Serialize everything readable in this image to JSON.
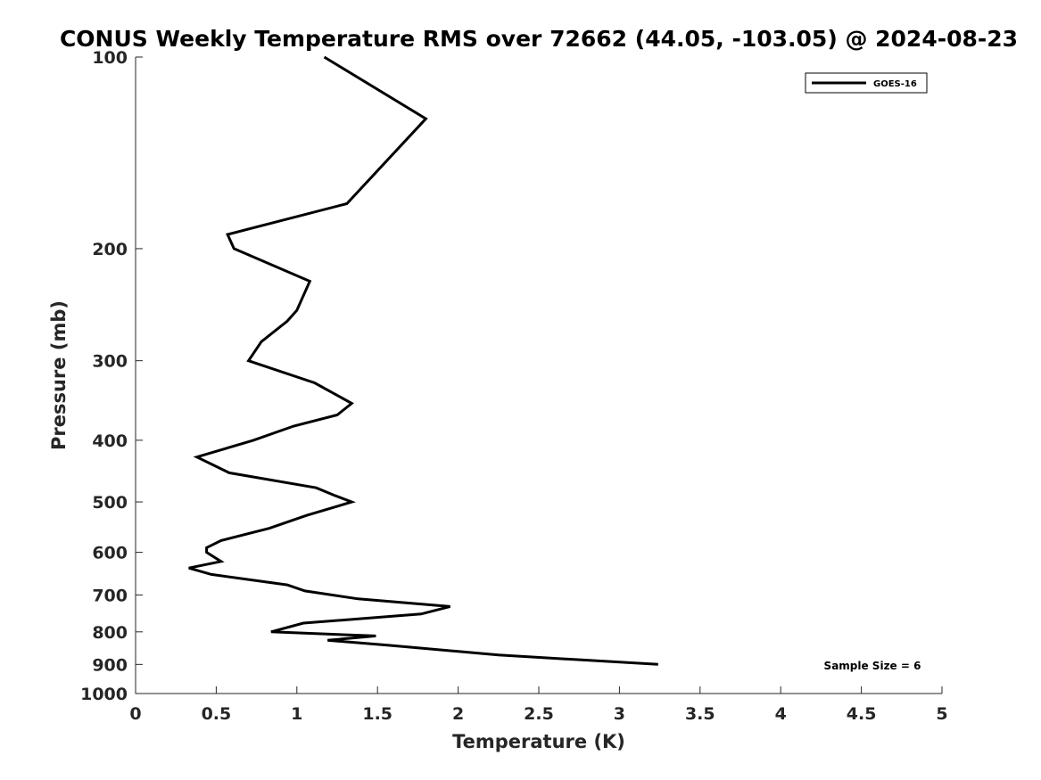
{
  "chart_data": {
    "type": "line",
    "title": "CONUS Weekly Temperature RMS over 72662 (44.05, -103.05) @ 2024-08-23",
    "xlabel": "Temperature (K)",
    "ylabel": "Pressure (mb)",
    "xlim": [
      0,
      5
    ],
    "ylim": [
      100,
      1000
    ],
    "yscale": "log",
    "yreversed": true,
    "grid": false,
    "legend_position": "top-right",
    "x_ticks": [
      0,
      0.5,
      1,
      1.5,
      2,
      2.5,
      3,
      3.5,
      4,
      4.5,
      5
    ],
    "x_tick_labels": [
      "0",
      "0.5",
      "1",
      "1.5",
      "2",
      "2.5",
      "3",
      "3.5",
      "4",
      "4.5",
      "5"
    ],
    "y_ticks": [
      100,
      200,
      300,
      400,
      500,
      600,
      700,
      800,
      900,
      1000
    ],
    "y_tick_labels": [
      "100",
      "200",
      "300",
      "400",
      "500",
      "600",
      "700",
      "800",
      "900",
      "1000"
    ],
    "series": [
      {
        "name": "GOES-16",
        "color": "#000000",
        "points": [
          {
            "x": 1.17,
            "y": 100
          },
          {
            "x": 1.8,
            "y": 125
          },
          {
            "x": 1.31,
            "y": 170
          },
          {
            "x": 0.57,
            "y": 190
          },
          {
            "x": 0.61,
            "y": 200
          },
          {
            "x": 1.08,
            "y": 225
          },
          {
            "x": 1.0,
            "y": 250
          },
          {
            "x": 0.94,
            "y": 260
          },
          {
            "x": 0.78,
            "y": 280
          },
          {
            "x": 0.7,
            "y": 300
          },
          {
            "x": 1.11,
            "y": 325
          },
          {
            "x": 1.34,
            "y": 350
          },
          {
            "x": 1.25,
            "y": 365
          },
          {
            "x": 0.98,
            "y": 380
          },
          {
            "x": 0.73,
            "y": 400
          },
          {
            "x": 0.38,
            "y": 425
          },
          {
            "x": 0.58,
            "y": 450
          },
          {
            "x": 1.12,
            "y": 475
          },
          {
            "x": 1.23,
            "y": 488
          },
          {
            "x": 1.34,
            "y": 500
          },
          {
            "x": 1.06,
            "y": 525
          },
          {
            "x": 0.83,
            "y": 550
          },
          {
            "x": 0.53,
            "y": 575
          },
          {
            "x": 0.44,
            "y": 590
          },
          {
            "x": 0.44,
            "y": 600
          },
          {
            "x": 0.53,
            "y": 620
          },
          {
            "x": 0.33,
            "y": 635
          },
          {
            "x": 0.47,
            "y": 650
          },
          {
            "x": 0.94,
            "y": 675
          },
          {
            "x": 1.05,
            "y": 690
          },
          {
            "x": 1.38,
            "y": 710
          },
          {
            "x": 1.95,
            "y": 730
          },
          {
            "x": 1.77,
            "y": 750
          },
          {
            "x": 1.04,
            "y": 775
          },
          {
            "x": 0.84,
            "y": 800
          },
          {
            "x": 1.49,
            "y": 812
          },
          {
            "x": 1.19,
            "y": 825
          },
          {
            "x": 1.57,
            "y": 840
          },
          {
            "x": 2.25,
            "y": 870
          },
          {
            "x": 3.24,
            "y": 900
          }
        ]
      }
    ],
    "annotations": [
      {
        "text": "Sample Size = 6",
        "position": "bottom-right"
      }
    ]
  }
}
